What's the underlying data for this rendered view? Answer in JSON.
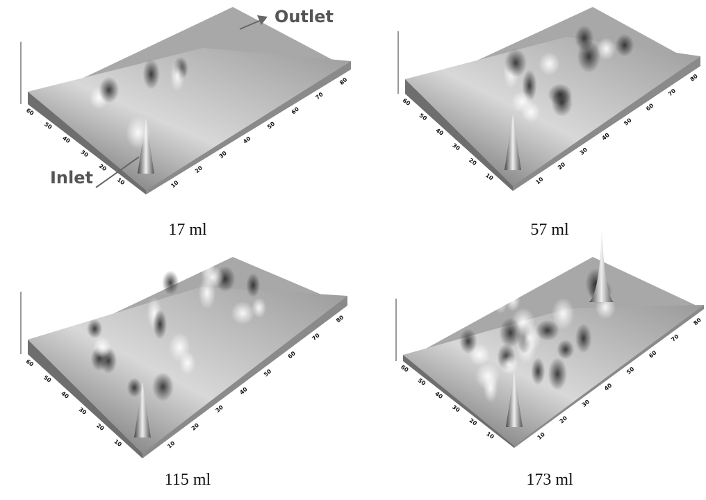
{
  "panels": [
    {
      "caption": "17 ml",
      "x_ticks": [
        10,
        20,
        30,
        40,
        50,
        60,
        70,
        80
      ],
      "y_ticks": [
        10,
        20,
        30,
        40,
        50,
        60
      ]
    },
    {
      "caption": "57 ml",
      "x_ticks": [
        10,
        20,
        30,
        40,
        50,
        60,
        70,
        80
      ],
      "y_ticks": [
        10,
        20,
        30,
        40,
        50,
        60
      ]
    },
    {
      "caption": "115 ml",
      "x_ticks": [
        10,
        20,
        30,
        40,
        50,
        60,
        70,
        80
      ],
      "y_ticks": [
        10,
        20,
        30,
        40,
        50,
        60
      ]
    },
    {
      "caption": "173 ml",
      "x_ticks": [
        10,
        20,
        30,
        40,
        50,
        60,
        70,
        80
      ],
      "y_ticks": [
        10,
        20,
        30,
        40,
        50,
        60
      ]
    }
  ],
  "annotations": {
    "outlet": "Outlet",
    "inlet": "Inlet"
  }
}
